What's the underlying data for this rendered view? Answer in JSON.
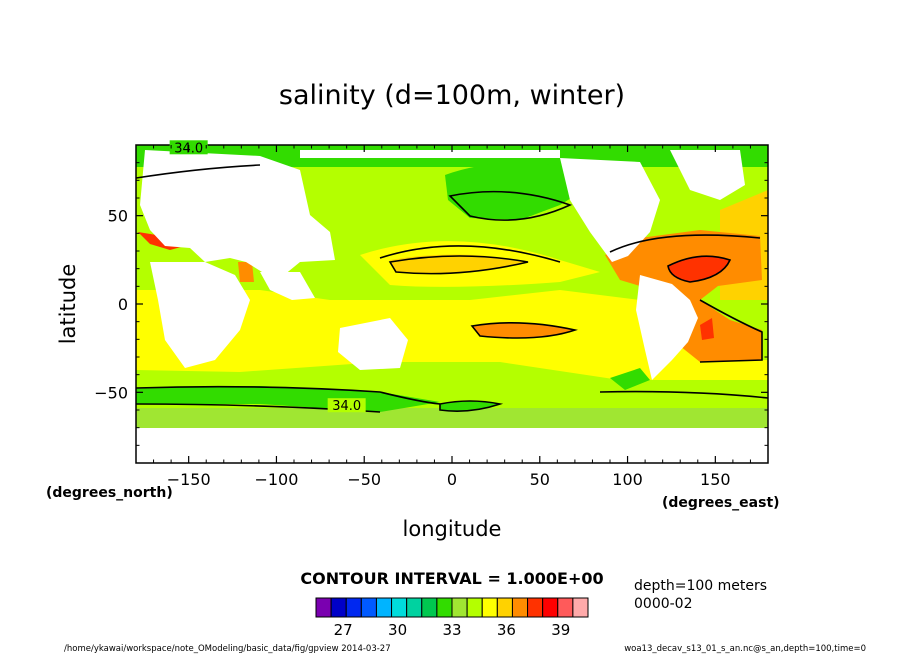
{
  "chart_data": {
    "type": "heatmap",
    "title": "salinity (d=100m, winter)",
    "xlabel": "longitude",
    "ylabel": "latitude",
    "x_unit_label": "(degrees_east)",
    "y_unit_label": "(degrees_north)",
    "xlim": [
      -180,
      180
    ],
    "ylim": [
      -90,
      90
    ],
    "x_ticks": [
      -150,
      -100,
      -50,
      0,
      50,
      100,
      150
    ],
    "x_tick_labels": [
      "−150",
      "−100",
      "−50",
      "0",
      "50",
      "100",
      "150"
    ],
    "y_ticks": [
      50,
      0,
      -50
    ],
    "y_tick_labels": [
      "50",
      "0",
      "−50"
    ],
    "contour_labels": [
      {
        "text": "34.0",
        "lon": -150,
        "lat": 87
      },
      {
        "text": "34.0",
        "lon": -60,
        "lat": -59
      }
    ],
    "contour_interval_text": "CONTOUR INTERVAL = 1.000E+00",
    "colorbar": {
      "colors": [
        "#7a00b0",
        "#0000c8",
        "#0028f0",
        "#005aff",
        "#00b4ff",
        "#00dcdc",
        "#00d2a0",
        "#00c850",
        "#32dc00",
        "#a0e632",
        "#b4ff00",
        "#ffff00",
        "#ffd200",
        "#ff8c00",
        "#ff3200",
        "#ff0000",
        "#ff5a5a",
        "#ffaaaa"
      ],
      "tick_values": [
        27,
        30,
        33,
        36,
        39
      ],
      "tick_labels": [
        "27",
        "30",
        "33",
        "36",
        "39"
      ],
      "min": 25.5,
      "max": 40.5
    },
    "annotations": [
      "depth=100 meters",
      "0000-02"
    ],
    "footer_left": "/home/ykawai/workspace/note_OModeling/basic_data/fig/gpview  2014-03-27",
    "footer_right": "woa13_decav_s13_01_s_an.nc@s_an,depth=100,time=0"
  }
}
